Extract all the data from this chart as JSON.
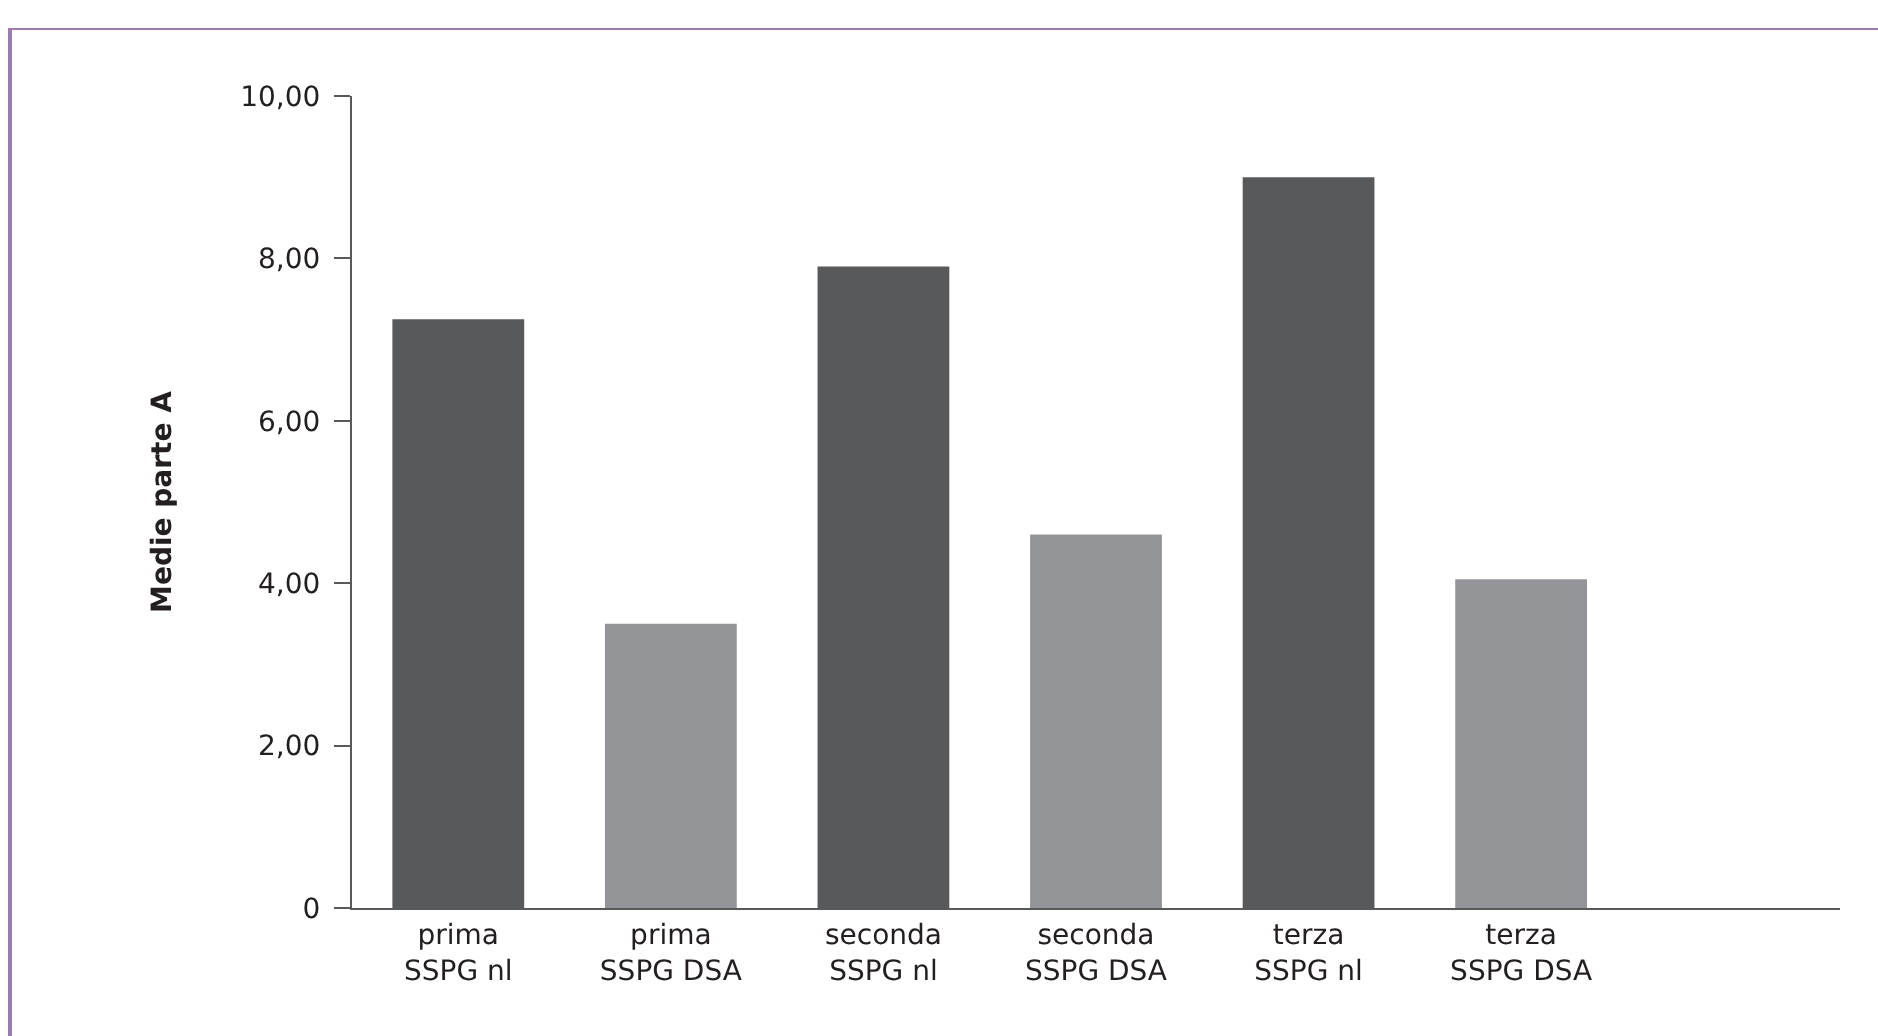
{
  "chart_data": {
    "type": "bar",
    "ylabel": "Medie parte A",
    "categories": [
      "prima\nSSPG nl",
      "prima\nSSPG DSA",
      "seconda\nSSPG nl",
      "seconda\nSSPG DSA",
      "terza\nSSPG nl",
      "terza\nSSPG DSA",
      null
    ],
    "values": [
      7.25,
      3.5,
      7.9,
      4.6,
      9.0,
      4.05,
      null
    ],
    "colors": [
      "#58595b",
      "#939598",
      "#58595b",
      "#939598",
      "#58595b",
      "#939598",
      "#939598"
    ],
    "ylim": [
      0,
      10
    ],
    "yticks": [
      0,
      {
        "value": 2,
        "label": "2,00"
      },
      {
        "value": 4,
        "label": "4,00"
      },
      {
        "value": 6,
        "label": "6,00"
      },
      {
        "value": 8,
        "label": "8,00"
      },
      {
        "value": 10,
        "label": "10,00"
      }
    ],
    "grid": false,
    "legend": false
  }
}
